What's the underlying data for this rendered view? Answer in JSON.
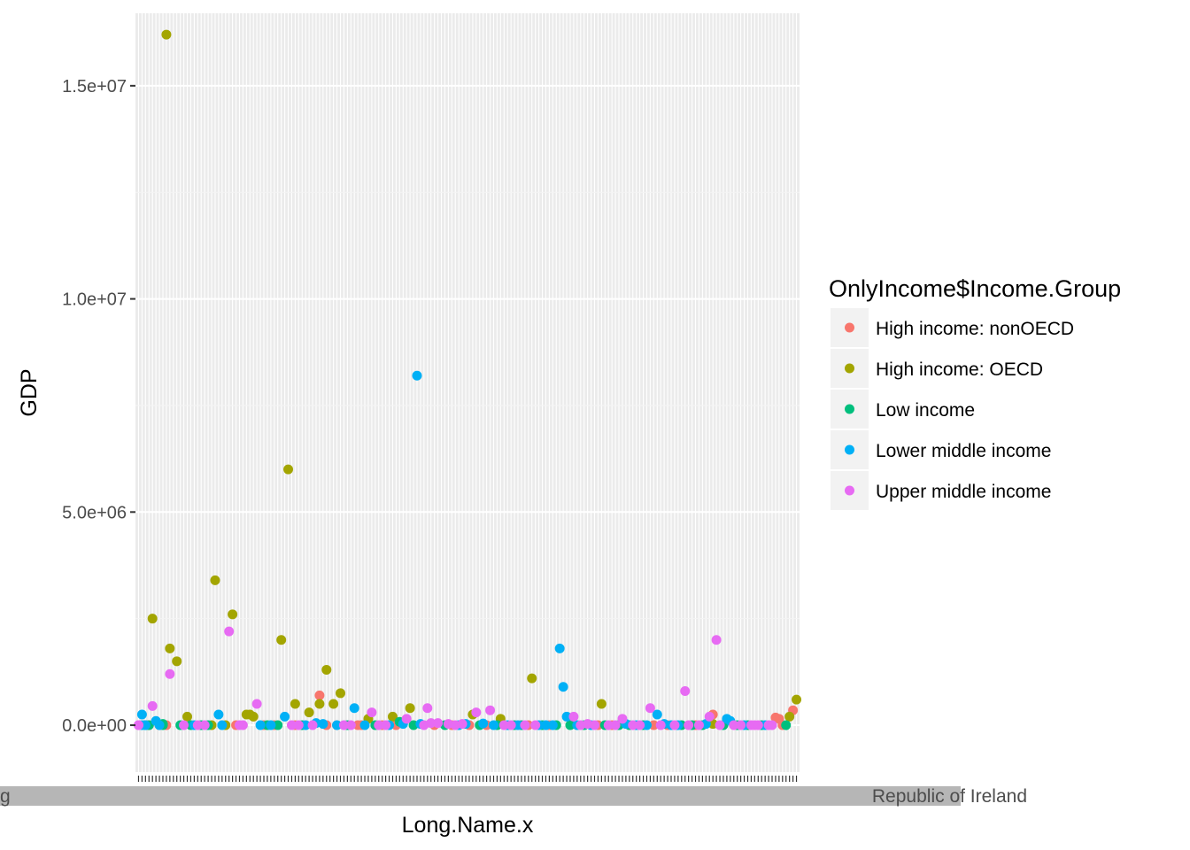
{
  "chart_data": {
    "type": "scatter",
    "title": "",
    "xlabel": "Long.Name.x",
    "ylabel": "GDP",
    "ylim": [
      -1100000,
      16700000
    ],
    "y_ticks": [
      {
        "value": 0,
        "label": "0.0e+00"
      },
      {
        "value": 5000000,
        "label": "5.0e+06"
      },
      {
        "value": 10000000,
        "label": "1.0e+07"
      },
      {
        "value": 15000000,
        "label": "1.5e+07"
      }
    ],
    "x_tick_labels_visible": [
      "g",
      "Republic of Ireland"
    ],
    "category_count": 190,
    "grid": true,
    "background": "#ebebeb",
    "legend": {
      "title": "OnlyIncome$Income.Group",
      "placement": "right",
      "entries": [
        {
          "name": "High income: nonOECD",
          "color": "#F8766D"
        },
        {
          "name": "High income: OECD",
          "color": "#A3A500"
        },
        {
          "name": "Low income",
          "color": "#00BF7D"
        },
        {
          "name": "Lower middle income",
          "color": "#00B0F6"
        },
        {
          "name": "Upper middle income",
          "color": "#E76BF3"
        }
      ]
    },
    "series": [
      {
        "name": "High income: nonOECD",
        "points": [
          [
            3,
            0
          ],
          [
            6,
            0
          ],
          [
            8,
            0
          ],
          [
            28,
            0
          ],
          [
            36,
            0
          ],
          [
            39,
            0
          ],
          [
            45,
            0
          ],
          [
            57,
            0
          ],
          [
            63,
            0
          ],
          [
            64,
            0
          ],
          [
            70,
            0
          ],
          [
            74,
            0
          ],
          [
            85,
            0
          ],
          [
            90,
            0
          ],
          [
            95,
            0
          ],
          [
            100,
            0
          ],
          [
            112,
            0
          ],
          [
            118,
            0
          ],
          [
            132,
            0
          ],
          [
            136,
            0
          ],
          [
            148,
            0
          ],
          [
            152,
            0
          ],
          [
            160,
            0
          ],
          [
            165,
            250000
          ],
          [
            183,
            180000
          ],
          [
            184,
            150000
          ],
          [
            185,
            0
          ],
          [
            188,
            350000
          ],
          [
            54,
            0
          ],
          [
            52,
            700000
          ]
        ]
      },
      {
        "name": "High income: OECD",
        "points": [
          [
            9,
            1800000
          ],
          [
            11,
            1500000
          ],
          [
            14,
            200000
          ],
          [
            22,
            3400000
          ],
          [
            27,
            2600000
          ],
          [
            31,
            250000
          ],
          [
            32,
            250000
          ],
          [
            33,
            200000
          ],
          [
            41,
            2000000
          ],
          [
            43,
            6000000
          ],
          [
            45,
            500000
          ],
          [
            49,
            300000
          ],
          [
            52,
            500000
          ],
          [
            54,
            1300000
          ],
          [
            56,
            500000
          ],
          [
            58,
            750000
          ],
          [
            66,
            150000
          ],
          [
            73,
            200000
          ],
          [
            78,
            400000
          ],
          [
            96,
            250000
          ],
          [
            104,
            150000
          ],
          [
            113,
            1100000
          ],
          [
            133,
            500000
          ],
          [
            165,
            30000
          ],
          [
            187,
            200000
          ],
          [
            189,
            600000
          ],
          [
            194,
            2500000
          ],
          [
            198,
            16200000
          ],
          [
            21,
            0
          ],
          [
            25,
            0
          ]
        ]
      },
      {
        "name": "Low income",
        "points": [
          [
            2,
            0
          ],
          [
            7,
            0
          ],
          [
            12,
            0
          ],
          [
            15,
            0
          ],
          [
            18,
            0
          ],
          [
            20,
            0
          ],
          [
            37,
            0
          ],
          [
            40,
            0
          ],
          [
            47,
            0
          ],
          [
            60,
            0
          ],
          [
            68,
            0
          ],
          [
            75,
            80000
          ],
          [
            79,
            0
          ],
          [
            88,
            0
          ],
          [
            98,
            0
          ],
          [
            103,
            0
          ],
          [
            108,
            0
          ],
          [
            110,
            0
          ],
          [
            116,
            0
          ],
          [
            120,
            0
          ],
          [
            124,
            0
          ],
          [
            128,
            0
          ],
          [
            134,
            0
          ],
          [
            138,
            0
          ],
          [
            141,
            0
          ],
          [
            145,
            0
          ],
          [
            156,
            0
          ],
          [
            159,
            0
          ],
          [
            162,
            0
          ],
          [
            168,
            0
          ],
          [
            172,
            0
          ],
          [
            175,
            0
          ],
          [
            179,
            0
          ],
          [
            186,
            0
          ],
          [
            193,
            0
          ],
          [
            197,
            30000
          ]
        ]
      },
      {
        "name": "Lower middle income",
        "points": [
          [
            1,
            250000
          ],
          [
            16,
            0
          ],
          [
            23,
            250000
          ],
          [
            24,
            0
          ],
          [
            35,
            0
          ],
          [
            38,
            0
          ],
          [
            42,
            200000
          ],
          [
            48,
            0
          ],
          [
            51,
            50000
          ],
          [
            53,
            30000
          ],
          [
            57,
            0
          ],
          [
            62,
            400000
          ],
          [
            65,
            0
          ],
          [
            72,
            0
          ],
          [
            76,
            30000
          ],
          [
            80,
            8200000
          ],
          [
            81,
            30000
          ],
          [
            92,
            0
          ],
          [
            94,
            30000
          ],
          [
            99,
            40000
          ],
          [
            102,
            0
          ],
          [
            106,
            0
          ],
          [
            109,
            0
          ],
          [
            115,
            0
          ],
          [
            117,
            0
          ],
          [
            119,
            0
          ],
          [
            121,
            1800000
          ],
          [
            122,
            900000
          ],
          [
            123,
            200000
          ],
          [
            126,
            0
          ],
          [
            130,
            0
          ],
          [
            140,
            30000
          ],
          [
            143,
            0
          ],
          [
            146,
            0
          ],
          [
            149,
            250000
          ],
          [
            151,
            30000
          ],
          [
            153,
            0
          ],
          [
            155,
            0
          ],
          [
            163,
            30000
          ],
          [
            169,
            150000
          ],
          [
            170,
            100000
          ],
          [
            174,
            0
          ],
          [
            180,
            0
          ],
          [
            191,
            0
          ],
          [
            192,
            0
          ],
          [
            195,
            100000
          ],
          [
            196,
            0
          ]
        ]
      },
      {
        "name": "Upper middle income",
        "points": [
          [
            0,
            0
          ],
          [
            4,
            450000
          ],
          [
            13,
            0
          ],
          [
            17,
            0
          ],
          [
            19,
            0
          ],
          [
            26,
            2200000
          ],
          [
            29,
            0
          ],
          [
            30,
            0
          ],
          [
            34,
            500000
          ],
          [
            44,
            0
          ],
          [
            46,
            0
          ],
          [
            50,
            0
          ],
          [
            59,
            0
          ],
          [
            61,
            0
          ],
          [
            67,
            300000
          ],
          [
            69,
            0
          ],
          [
            71,
            0
          ],
          [
            77,
            150000
          ],
          [
            82,
            0
          ],
          [
            83,
            400000
          ],
          [
            84,
            50000
          ],
          [
            86,
            50000
          ],
          [
            89,
            30000
          ],
          [
            91,
            0
          ],
          [
            93,
            30000
          ],
          [
            97,
            300000
          ],
          [
            101,
            350000
          ],
          [
            105,
            0
          ],
          [
            107,
            0
          ],
          [
            111,
            0
          ],
          [
            114,
            0
          ],
          [
            125,
            200000
          ],
          [
            127,
            0
          ],
          [
            129,
            30000
          ],
          [
            131,
            0
          ],
          [
            135,
            0
          ],
          [
            137,
            0
          ],
          [
            139,
            150000
          ],
          [
            142,
            0
          ],
          [
            144,
            0
          ],
          [
            147,
            400000
          ],
          [
            150,
            0
          ],
          [
            154,
            0
          ],
          [
            157,
            800000
          ],
          [
            158,
            0
          ],
          [
            161,
            0
          ],
          [
            164,
            200000
          ],
          [
            166,
            2000000
          ],
          [
            167,
            0
          ],
          [
            171,
            0
          ],
          [
            173,
            0
          ],
          [
            176,
            0
          ],
          [
            177,
            0
          ],
          [
            178,
            0
          ],
          [
            181,
            0
          ],
          [
            182,
            0
          ],
          [
            190,
            0
          ],
          [
            199,
            1200000
          ]
        ]
      }
    ]
  }
}
